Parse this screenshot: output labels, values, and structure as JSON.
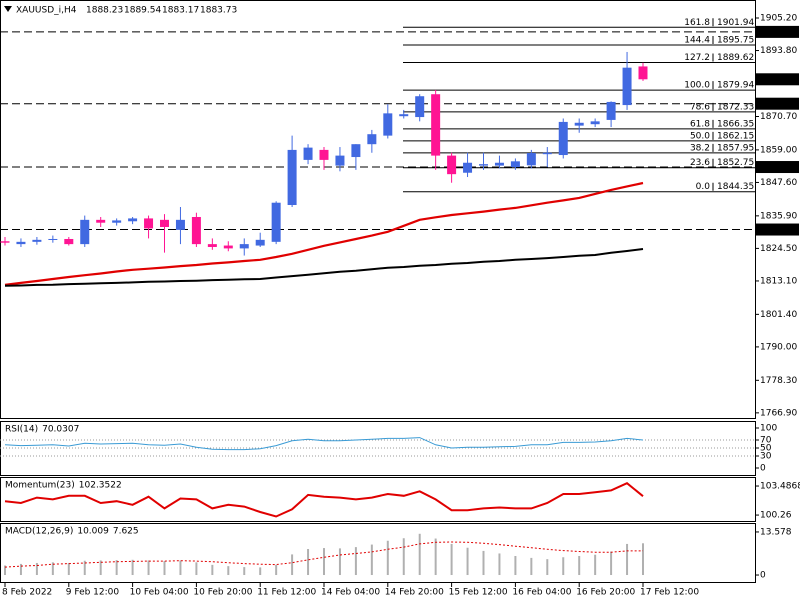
{
  "chart_data": [
    {
      "type": "candlestick",
      "title": "XAUUSD_i,H4",
      "categories": [
        "8 Feb 2022",
        null,
        null,
        null,
        "9 Feb 12:00",
        null,
        null,
        null,
        "10 Feb 04:00",
        null,
        null,
        null,
        "10 Feb 20:00",
        null,
        null,
        null,
        "11 Feb 12:00",
        null,
        null,
        null,
        "14 Feb 04:00",
        null,
        null,
        null,
        "14 Feb 20:00",
        null,
        null,
        null,
        "15 Feb 12:00",
        null,
        null,
        null,
        "16 Feb 04:00",
        null,
        null,
        null,
        "16 Feb 20:00",
        null,
        null,
        null,
        "17 Feb 12:00"
      ],
      "open": [
        1827.0,
        1826.0,
        1826.8,
        1827.5,
        1827.8,
        1826.0,
        1834.5,
        1833.5,
        1834.0,
        1835.0,
        1834.5,
        1831.0,
        1835.5,
        1826.0,
        1825.5,
        1824.5,
        1825.5,
        1826.8,
        1839.7,
        1855.5,
        1859.0,
        1853.5,
        1856.5,
        1861.0,
        1864.0,
        1870.8,
        1870.5,
        1878.5,
        1857.0,
        1851.0,
        1853.5,
        1853.5,
        1853.0,
        1853.6,
        1857.5,
        1857.2,
        1867.5,
        1868.0,
        1869.5,
        1874.7,
        1888.23
      ],
      "high": [
        1828.5,
        1828.0,
        1828.5,
        1829.0,
        1828.5,
        1836.0,
        1835.5,
        1835.0,
        1835.5,
        1836.0,
        1836.5,
        1839.0,
        1837.0,
        1828.0,
        1827.0,
        1828.0,
        1830.0,
        1841.0,
        1864.0,
        1861.0,
        1860.0,
        1860.0,
        1861.0,
        1866.0,
        1875.0,
        1873.0,
        1878.5,
        1880.0,
        1858.0,
        1858.0,
        1858.0,
        1857.0,
        1856.0,
        1859.0,
        1860.0,
        1870.0,
        1870.0,
        1870.0,
        1876.0,
        1893.3,
        1889.54
      ],
      "low": [
        1825.5,
        1825.0,
        1825.8,
        1826.5,
        1825.5,
        1825.0,
        1832.0,
        1832.5,
        1833.0,
        1828.0,
        1823.0,
        1826.0,
        1825.0,
        1824.0,
        1823.5,
        1822.0,
        1825.0,
        1826.0,
        1839.0,
        1854.0,
        1852.0,
        1851.5,
        1852.0,
        1858.0,
        1863.0,
        1870.0,
        1869.0,
        1852.0,
        1847.5,
        1849.5,
        1852.0,
        1852.5,
        1852.0,
        1852.5,
        1853.0,
        1856.0,
        1865.0,
        1867.0,
        1867.0,
        1873.0,
        1883.17
      ],
      "close": [
        1826.5,
        1826.8,
        1827.5,
        1827.8,
        1826.0,
        1834.5,
        1833.5,
        1834.3,
        1835.0,
        1831.5,
        1832.0,
        1834.5,
        1826.0,
        1825.0,
        1824.5,
        1826.0,
        1827.5,
        1840.5,
        1859.0,
        1859.8,
        1855.5,
        1857.0,
        1861.0,
        1864.5,
        1871.8,
        1871.5,
        1877.8,
        1857.0,
        1850.5,
        1854.5,
        1854.0,
        1854.5,
        1855.0,
        1857.9,
        1858.0,
        1868.8,
        1868.5,
        1869.0,
        1875.8,
        1887.8,
        1883.73
      ],
      "up_color": "#4169e1",
      "down_color": "#ff1493",
      "moving_averages": [
        {
          "color": "#e00000",
          "values": [
            1811.7,
            1812.4,
            1813.1,
            1813.8,
            1814.5,
            1815.1,
            1815.7,
            1816.4,
            1817.0,
            1817.4,
            1817.8,
            1818.3,
            1818.7,
            1819.2,
            1819.6,
            1820.1,
            1820.5,
            1821.5,
            1822.6,
            1824.0,
            1825.4,
            1826.6,
            1827.8,
            1829.0,
            1830.3,
            1832.4,
            1834.5,
            1835.4,
            1836.2,
            1836.8,
            1837.4,
            1838.1,
            1838.7,
            1839.6,
            1840.5,
            1841.3,
            1842.2,
            1843.6,
            1845.0,
            1846.2,
            1847.4
          ]
        },
        {
          "color": "#000000",
          "values": [
            1811.4,
            1811.5,
            1811.7,
            1811.8,
            1812.0,
            1812.1,
            1812.3,
            1812.4,
            1812.6,
            1812.8,
            1812.9,
            1813.1,
            1813.2,
            1813.4,
            1813.5,
            1813.7,
            1813.8,
            1814.3,
            1814.8,
            1815.3,
            1815.8,
            1816.3,
            1816.7,
            1817.2,
            1817.7,
            1818.0,
            1818.4,
            1818.7,
            1819.1,
            1819.4,
            1819.8,
            1820.1,
            1820.5,
            1820.8,
            1821.1,
            1821.5,
            1821.9,
            1822.2,
            1823.0,
            1823.6,
            1824.3
          ]
        }
      ],
      "ylim": [
        1765.1,
        1911.5
      ],
      "yticks": [
        {
          "value": 1905.2,
          "label": "1905.20"
        },
        {
          "value": 1893.8,
          "label": "1893.80"
        },
        {
          "value": 1870.7,
          "label": "1870.70"
        },
        {
          "value": 1859.0,
          "label": "1859.00"
        },
        {
          "value": 1847.6,
          "label": "1847.60"
        },
        {
          "value": 1835.9,
          "label": "1835.90"
        },
        {
          "value": 1824.5,
          "label": "1824.50"
        },
        {
          "value": 1813.1,
          "label": "1813.10"
        },
        {
          "value": 1801.4,
          "label": "1801.40"
        },
        {
          "value": 1790.0,
          "label": "1790.00"
        },
        {
          "value": 1778.3,
          "label": "1778.30"
        },
        {
          "value": 1766.9,
          "label": "1766.90"
        }
      ],
      "fib_levels": [
        {
          "level": "161.8",
          "price": 1901.94
        },
        {
          "level": "144.4",
          "price": 1895.75
        },
        {
          "level": "127.2",
          "price": 1889.62
        },
        {
          "level": "100.0",
          "price": 1879.94
        },
        {
          "level": "78.6",
          "price": 1872.33
        },
        {
          "level": "61.8",
          "price": 1866.35
        },
        {
          "level": "50.0",
          "price": 1862.15
        },
        {
          "level": "38.2",
          "price": 1857.95
        },
        {
          "level": "23.6",
          "price": 1852.75
        },
        {
          "level": "0.0",
          "price": 1844.35
        }
      ],
      "price_levels": [
        1900.33,
        1875.18,
        {
          "value": 1853.0,
          "label": "1853.00"
        },
        1831.11
      ]
    },
    {
      "type": "line",
      "title": "RSI(14)",
      "color": "#3a9bd5",
      "values": [
        58,
        56,
        57,
        58,
        55,
        62,
        60,
        61,
        62,
        58,
        57,
        60,
        52,
        47,
        46,
        46,
        48,
        56,
        68,
        72,
        68,
        68,
        70,
        72,
        74,
        74,
        76,
        58,
        50,
        52,
        52,
        53,
        54,
        58,
        58,
        64,
        64,
        65,
        68,
        74,
        70.0307
      ],
      "ylim": [
        -17.5,
        117.5
      ],
      "yticks": [
        100,
        70,
        50,
        30,
        0
      ],
      "grid": true
    },
    {
      "type": "line",
      "title": "Momentum(23)",
      "color": "#e00000",
      "values": [
        101.8,
        101.6,
        102.2,
        102.0,
        102.4,
        102.4,
        101.6,
        101.8,
        101.4,
        102.3,
        101.0,
        102.1,
        102.0,
        101.0,
        101.4,
        101.2,
        100.6,
        100.1,
        100.9,
        102.5,
        102.3,
        102.2,
        102.0,
        102.2,
        102.6,
        102.4,
        102.9,
        102.0,
        100.8,
        100.8,
        101.0,
        101.1,
        101.0,
        101.0,
        101.6,
        102.6,
        102.6,
        102.8,
        103.0,
        103.8,
        102.3522
      ],
      "ylim": [
        99.6,
        104.49
      ],
      "yticks": [
        103.4868,
        100.26
      ]
    },
    {
      "type": "macd",
      "title": "MACD(12,26,9)",
      "histogram": {
        "color": "#b0b0b0",
        "values": [
          3,
          3.5,
          3.8,
          4,
          3.8,
          4.5,
          4.6,
          4.7,
          4.8,
          4.6,
          4.4,
          4.6,
          4.0,
          3.2,
          2.8,
          2.5,
          2.4,
          3.2,
          6.5,
          8.2,
          8.5,
          8.4,
          8.8,
          9.6,
          10.8,
          11.6,
          13.0,
          11.5,
          9.8,
          8.6,
          7.6,
          6.8,
          6.0,
          5.4,
          5.0,
          5.6,
          6.0,
          6.4,
          7.4,
          9.8,
          10.009
        ]
      },
      "signal": {
        "color": "#e00000",
        "values": [
          2.5,
          2.8,
          3.0,
          3.4,
          3.6,
          3.8,
          4.0,
          4.2,
          4.3,
          4.4,
          4.4,
          4.5,
          4.4,
          4.2,
          3.9,
          3.6,
          3.4,
          3.3,
          3.9,
          4.8,
          5.6,
          6.3,
          6.8,
          7.3,
          8.1,
          8.8,
          9.8,
          10.3,
          10.4,
          10.3,
          10.0,
          9.6,
          9.1,
          8.6,
          8.1,
          7.7,
          7.4,
          7.2,
          7.2,
          7.6,
          7.625
        ]
      },
      "ylim": [
        -2.2,
        16.4
      ],
      "yticks": [
        13.578,
        0
      ]
    }
  ]
}
